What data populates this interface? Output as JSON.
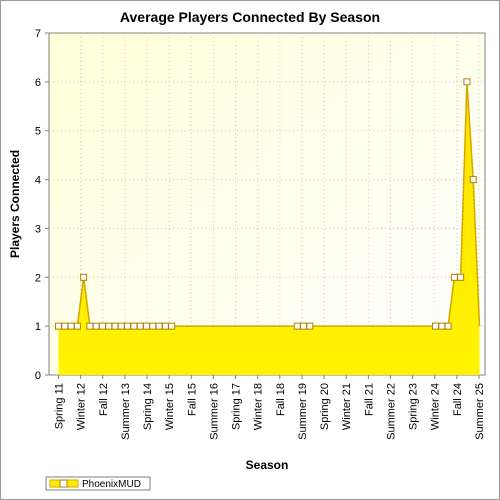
{
  "chart_data": {
    "type": "area",
    "title": "Average Players Connected By Season",
    "xlabel": "Season",
    "ylabel": "Players Connected",
    "ylim": [
      0,
      7
    ],
    "yticks": [
      0,
      1,
      2,
      3,
      4,
      5,
      6,
      7
    ],
    "grid": true,
    "legend_placement": "bottom-left",
    "x_tick_labels": [
      "Spring 11",
      "Winter 12",
      "Fall 12",
      "Summer 13",
      "Spring 14",
      "Winter 15",
      "Fall 15",
      "Summer 16",
      "Spring 17",
      "Winter 18",
      "Fall 18",
      "Summer 19",
      "Spring 20",
      "Winter 21",
      "Fall 21",
      "Summer 22",
      "Spring 23",
      "Winter 24",
      "Fall 24",
      "Summer 25"
    ],
    "series": [
      {
        "name": "PhoenixMUD",
        "color": "#ffee00",
        "line_color": "#d4a600",
        "values": [
          1,
          1,
          1,
          1,
          2,
          1,
          1,
          1,
          1,
          1,
          1,
          1,
          1,
          1,
          1,
          1,
          1,
          1,
          1,
          1,
          1,
          1,
          1,
          1,
          1,
          1,
          1,
          1,
          1,
          1,
          1,
          1,
          1,
          1,
          1,
          1,
          1,
          1,
          1,
          1,
          1,
          1,
          1,
          1,
          1,
          1,
          1,
          1,
          1,
          1,
          1,
          1,
          1,
          1,
          1,
          1,
          1,
          1,
          1,
          1,
          1,
          1,
          1,
          2,
          2,
          6,
          4,
          1
        ],
        "marked_indices": [
          0,
          1,
          2,
          3,
          4,
          5,
          6,
          7,
          8,
          9,
          10,
          11,
          12,
          13,
          14,
          15,
          16,
          17,
          18,
          38,
          39,
          40,
          60,
          61,
          62,
          63,
          64,
          65,
          66
        ]
      }
    ]
  }
}
